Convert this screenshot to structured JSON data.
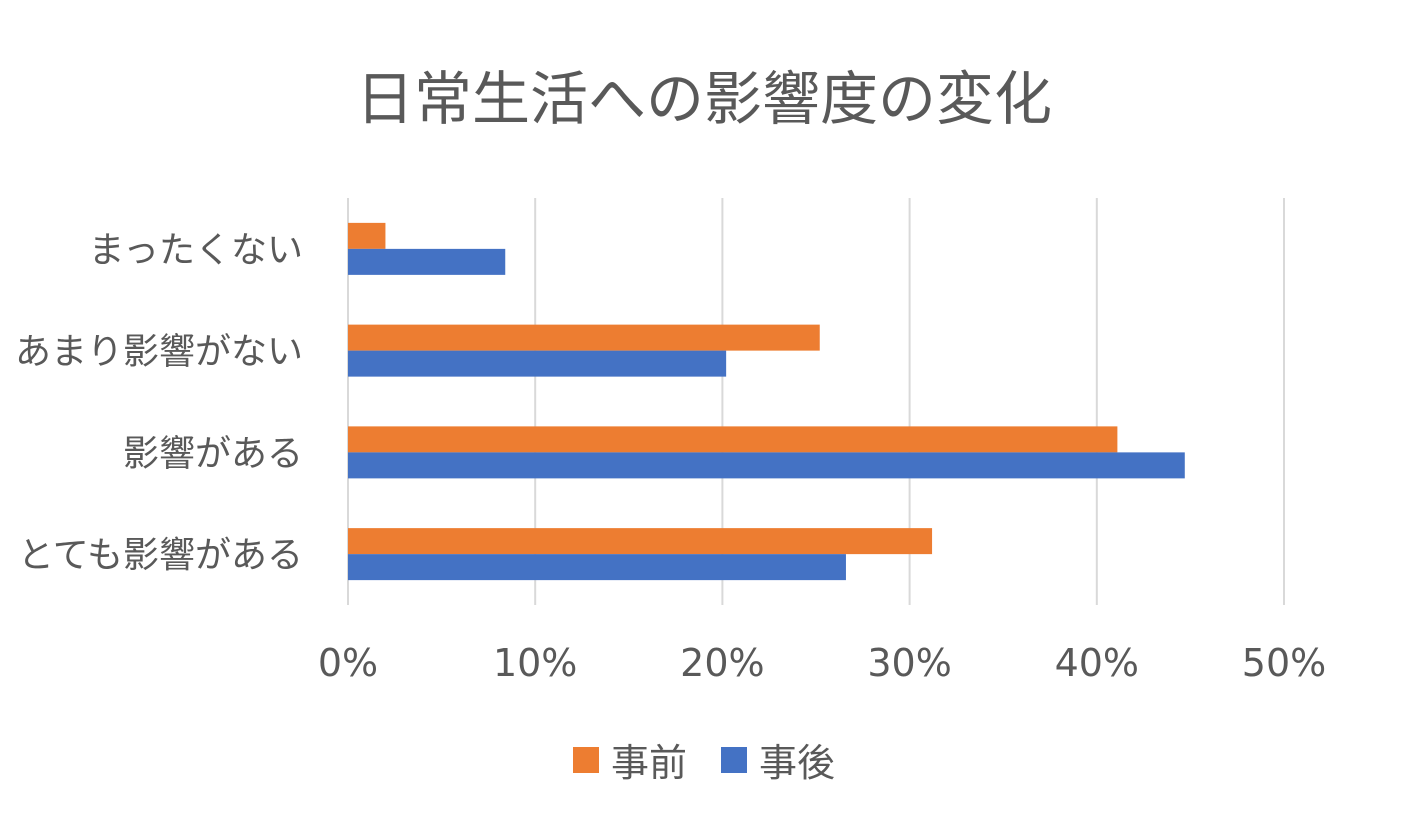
{
  "chart_data": {
    "type": "bar",
    "orientation": "horizontal",
    "title": "日常生活への影響度の変化",
    "categories": [
      "まったくない",
      "あまり影響がない",
      "影響がある",
      "とても影響がある"
    ],
    "series": [
      {
        "name": "事前",
        "color": "#ED7D31",
        "values": [
          2.0,
          25.2,
          41.1,
          31.2
        ]
      },
      {
        "name": "事後",
        "color": "#4472C4",
        "values": [
          8.4,
          20.2,
          44.7,
          26.6
        ]
      }
    ],
    "x_ticks": [
      "0%",
      "10%",
      "20%",
      "30%",
      "40%",
      "50%"
    ],
    "xlim": [
      0,
      50
    ],
    "grid": true,
    "legend_position": "bottom"
  }
}
